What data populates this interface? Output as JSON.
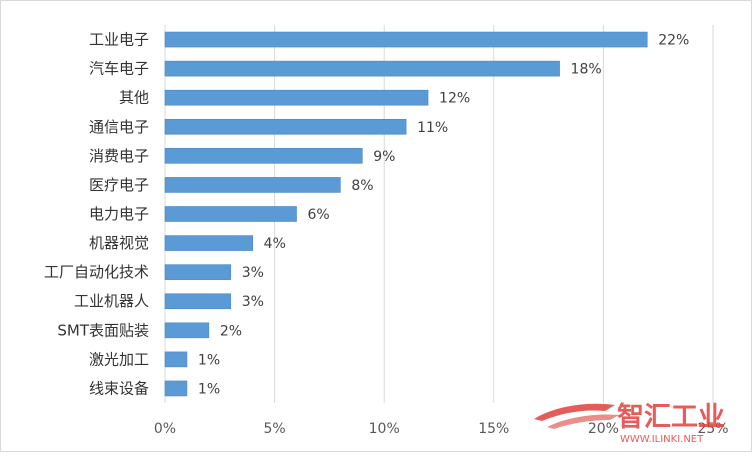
{
  "chart_data": {
    "type": "bar",
    "orientation": "horizontal",
    "title": "",
    "xlabel": "",
    "ylabel": "",
    "categories": [
      "工业电子",
      "汽车电子",
      "其他",
      "通信电子",
      "消费电子",
      "医疗电子",
      "电力电子",
      "机器视觉",
      "工厂自动化技术",
      "工业机器人",
      "SMT表面贴装",
      "激光加工",
      "线束设备"
    ],
    "values": [
      22,
      18,
      12,
      11,
      9,
      8,
      6,
      4,
      3,
      3,
      2,
      1,
      1
    ],
    "value_labels": [
      "22%",
      "18%",
      "12%",
      "11%",
      "9%",
      "8%",
      "6%",
      "4%",
      "3%",
      "3%",
      "2%",
      "1%",
      "1%"
    ],
    "xlim": [
      0,
      25
    ],
    "x_ticks": [
      0,
      5,
      10,
      15,
      20,
      25
    ],
    "x_tick_labels": [
      "0%",
      "5%",
      "10%",
      "15%",
      "20%",
      "25%"
    ],
    "grid": "vertical",
    "legend": "none",
    "bar_color": "#5b9bd5"
  },
  "watermark": {
    "text": "智汇工业",
    "subtext": "WWW.ILINKI.NET",
    "color": "#e0413b"
  }
}
